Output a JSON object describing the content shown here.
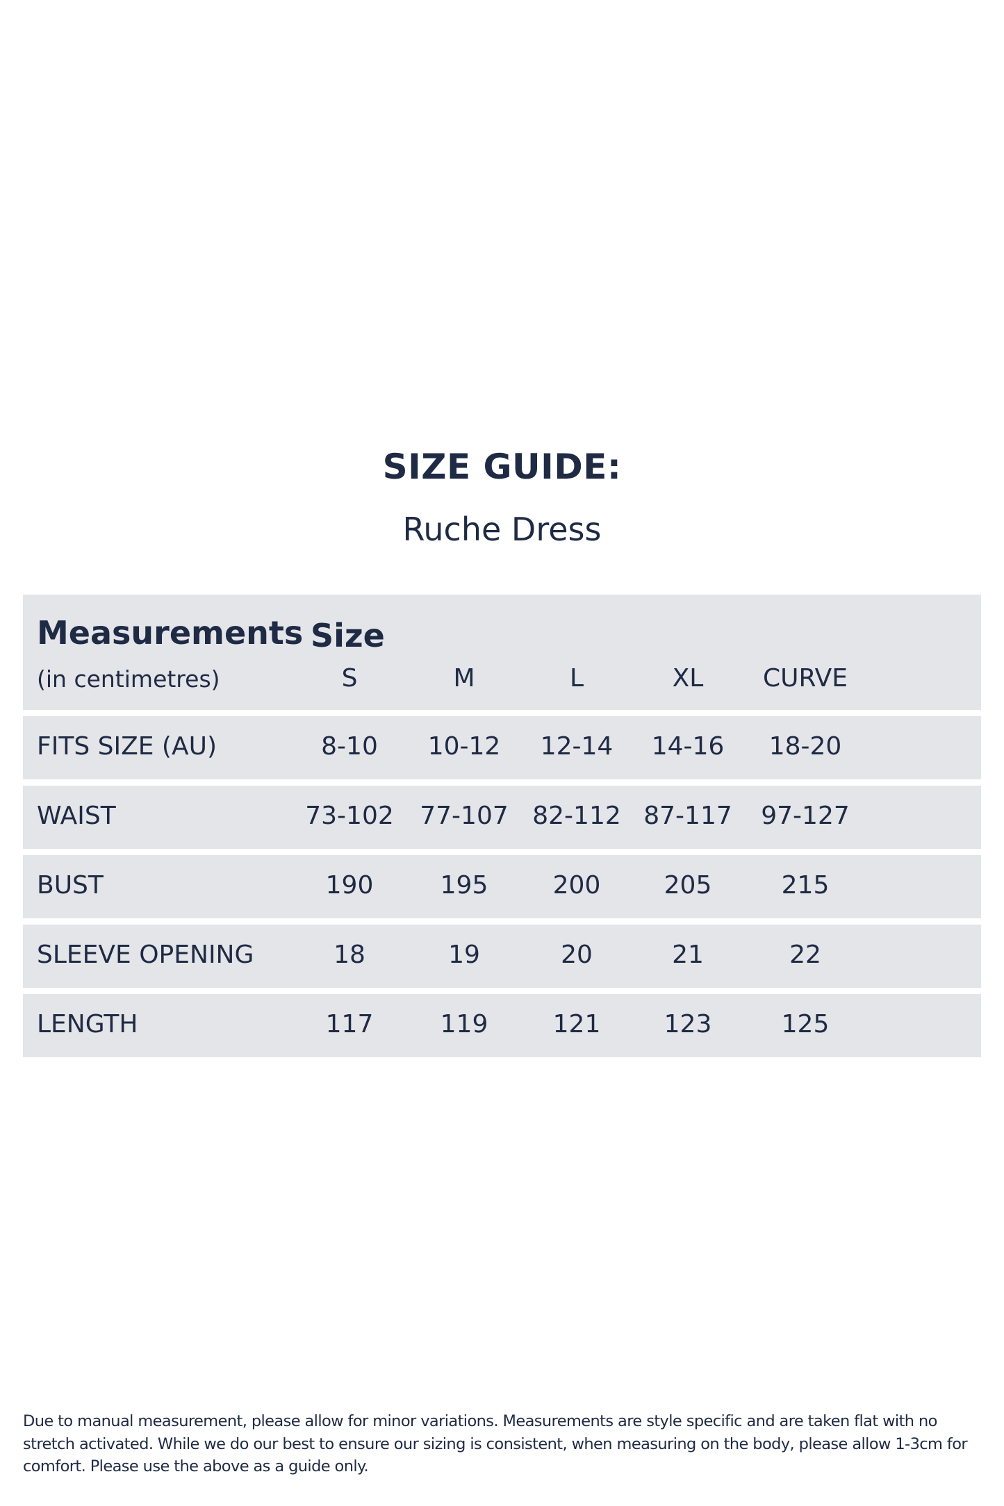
{
  "title": "SIZE GUIDE:",
  "subtitle": "Ruche Dress",
  "colors": {
    "text": "#1f2a44",
    "row_bg": "#e4e5e9",
    "background": "#ffffff"
  },
  "table": {
    "header_label": "Measurements",
    "header_units": "(in centimetres)",
    "size_label": "Size",
    "sizes": [
      "S",
      "M",
      "L",
      "XL",
      "CURVE"
    ],
    "rows": [
      {
        "label": "FITS SIZE (AU)",
        "values": [
          "8-10",
          "10-12",
          "12-14",
          "14-16",
          "18-20"
        ]
      },
      {
        "label": "WAIST",
        "values": [
          "73-102",
          "77-107",
          "82-112",
          "87-117",
          "97-127"
        ]
      },
      {
        "label": "BUST",
        "values": [
          "190",
          "195",
          "200",
          "205",
          "215"
        ]
      },
      {
        "label": "SLEEVE OPENING",
        "values": [
          "18",
          "19",
          "20",
          "21",
          "22"
        ]
      },
      {
        "label": "LENGTH",
        "values": [
          "117",
          "119",
          "121",
          "123",
          "125"
        ]
      }
    ]
  },
  "footnote": "Due to manual measurement, please allow for minor variations. Measurements are style specific and are taken flat with no stretch activated. While we do our best to ensure our sizing is consistent, when measuring on the body, please allow 1-3cm for comfort. Please use the above as a guide only."
}
